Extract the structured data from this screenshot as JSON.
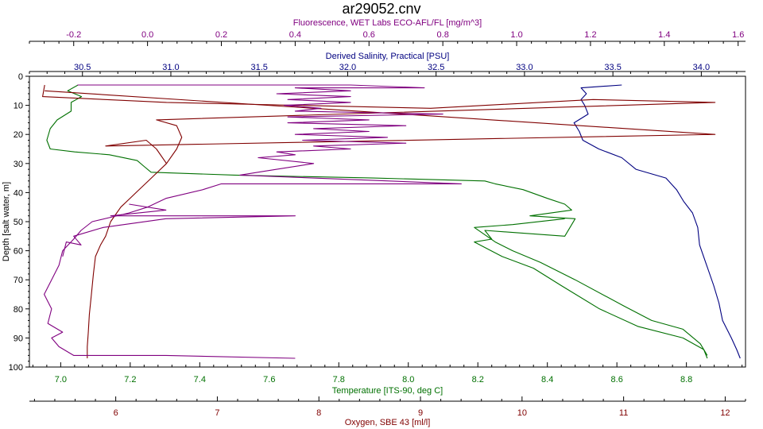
{
  "chart_data": {
    "type": "line",
    "title": "ar29052.cnv",
    "grid": false,
    "legend": "none",
    "depth_axis": {
      "label": "Depth [salt water, m]",
      "range": [
        0,
        100
      ],
      "ticks": [
        0,
        10,
        20,
        30,
        40,
        50,
        60,
        70,
        80,
        90,
        100
      ],
      "inverted": true,
      "color": "#000000"
    },
    "x_axes": [
      {
        "id": "fluor",
        "position": "top-outer",
        "label": "Fluorescence, WET Labs ECO-AFL/FL [mg/m^3]",
        "color": "#800080",
        "range": [
          -0.32,
          1.62
        ],
        "ticks": [
          "-0.2",
          "0.0",
          "0.2",
          "0.4",
          "0.6",
          "0.8",
          "1.0",
          "1.2",
          "1.4",
          "1.6"
        ]
      },
      {
        "id": "sal",
        "position": "top-inner",
        "label": "Derived Salinity, Practical [PSU]",
        "color": "#000080",
        "range": [
          30.2,
          34.25
        ],
        "ticks": [
          "30.5",
          "31.0",
          "31.5",
          "32.0",
          "32.5",
          "33.0",
          "33.5",
          "34.0"
        ]
      },
      {
        "id": "temp",
        "position": "bottom-inner",
        "label": "Temperature [ITS-90, deg C]",
        "color": "#007000",
        "range": [
          6.91,
          8.97
        ],
        "ticks": [
          "7.0",
          "7.2",
          "7.4",
          "7.6",
          "7.8",
          "8.0",
          "8.2",
          "8.4",
          "8.6",
          "8.8"
        ]
      },
      {
        "id": "oxy",
        "position": "bottom-outer",
        "label": "Oxygen, SBE 43 [ml/l]",
        "color": "#800000",
        "range": [
          5.15,
          12.2
        ],
        "ticks": [
          "6",
          "7",
          "8",
          "9",
          "10",
          "11",
          "12"
        ]
      }
    ],
    "series": [
      {
        "axis": "sal",
        "color": "#000080",
        "points": [
          [
            33.55,
            3
          ],
          [
            33.32,
            4
          ],
          [
            33.35,
            6
          ],
          [
            33.32,
            8
          ],
          [
            33.34,
            10
          ],
          [
            33.36,
            13
          ],
          [
            33.28,
            16
          ],
          [
            33.31,
            19
          ],
          [
            33.33,
            22
          ],
          [
            33.42,
            25
          ],
          [
            33.55,
            28
          ],
          [
            33.63,
            32
          ],
          [
            33.8,
            35
          ],
          [
            33.86,
            39
          ],
          [
            33.9,
            43
          ],
          [
            33.95,
            47
          ],
          [
            33.98,
            52
          ],
          [
            33.99,
            58
          ],
          [
            34.03,
            65
          ],
          [
            34.07,
            72
          ],
          [
            34.1,
            78
          ],
          [
            34.12,
            84
          ],
          [
            34.17,
            90
          ],
          [
            34.2,
            94
          ],
          [
            34.22,
            97
          ]
        ]
      },
      {
        "axis": "temp",
        "color": "#007000",
        "points": [
          [
            7.05,
            3
          ],
          [
            7.02,
            5
          ],
          [
            7.06,
            7
          ],
          [
            7.03,
            9
          ],
          [
            7.03,
            12
          ],
          [
            6.99,
            15
          ],
          [
            6.97,
            18
          ],
          [
            6.96,
            22
          ],
          [
            6.97,
            25
          ],
          [
            7.04,
            26
          ],
          [
            7.14,
            27
          ],
          [
            7.22,
            29
          ],
          [
            7.24,
            31
          ],
          [
            7.26,
            33
          ],
          [
            7.5,
            34
          ],
          [
            7.9,
            35
          ],
          [
            8.22,
            36
          ],
          [
            8.25,
            37
          ],
          [
            8.33,
            39
          ],
          [
            8.4,
            42
          ],
          [
            8.45,
            44
          ],
          [
            8.47,
            46
          ],
          [
            8.35,
            48
          ],
          [
            8.48,
            49
          ],
          [
            8.45,
            55
          ],
          [
            8.22,
            53
          ],
          [
            8.24,
            56
          ],
          [
            8.19,
            57
          ],
          [
            8.27,
            62
          ],
          [
            8.36,
            66
          ],
          [
            8.44,
            72
          ],
          [
            8.55,
            80
          ],
          [
            8.66,
            86
          ],
          [
            8.79,
            90
          ],
          [
            8.85,
            94
          ],
          [
            8.86,
            97
          ]
        ]
      },
      {
        "axis": "temp",
        "color": "#007000",
        "points": [
          [
            8.45,
            49
          ],
          [
            8.3,
            51
          ],
          [
            8.19,
            52
          ],
          [
            8.25,
            57
          ],
          [
            8.3,
            60
          ],
          [
            8.38,
            64
          ],
          [
            8.48,
            70
          ],
          [
            8.62,
            79
          ],
          [
            8.7,
            84
          ],
          [
            8.79,
            87
          ],
          [
            8.84,
            92
          ],
          [
            8.86,
            96
          ]
        ]
      },
      {
        "axis": "oxy",
        "color": "#800000",
        "points": [
          [
            5.3,
            3
          ],
          [
            5.28,
            7
          ],
          [
            6.5,
            9
          ],
          [
            9.1,
            11
          ],
          [
            10.7,
            8
          ],
          [
            11.9,
            9
          ],
          [
            6.4,
            15
          ],
          [
            6.6,
            17
          ],
          [
            6.65,
            21
          ],
          [
            6.6,
            25
          ],
          [
            6.5,
            30
          ],
          [
            6.35,
            35
          ],
          [
            6.2,
            40
          ],
          [
            6.05,
            45
          ],
          [
            5.95,
            50
          ],
          [
            5.9,
            55
          ],
          [
            5.85,
            58
          ],
          [
            5.8,
            62
          ],
          [
            5.78,
            68
          ],
          [
            5.76,
            75
          ],
          [
            5.74,
            82
          ],
          [
            5.73,
            88
          ],
          [
            5.72,
            93
          ],
          [
            5.72,
            97
          ]
        ]
      },
      {
        "axis": "oxy",
        "color": "#800000",
        "points": [
          [
            5.3,
            5
          ],
          [
            11.9,
            20
          ],
          [
            5.9,
            24
          ],
          [
            6.3,
            22
          ],
          [
            6.4,
            25
          ],
          [
            6.5,
            30
          ]
        ]
      },
      {
        "axis": "fluor",
        "color": "#800080",
        "points": [
          [
            -0.19,
            3
          ],
          [
            0.2,
            3
          ],
          [
            0.55,
            3
          ],
          [
            0.75,
            4
          ],
          [
            0.4,
            4
          ],
          [
            0.55,
            5
          ],
          [
            0.35,
            6
          ],
          [
            0.55,
            7
          ],
          [
            0.38,
            8
          ],
          [
            0.55,
            9
          ],
          [
            0.37,
            10
          ],
          [
            0.47,
            11
          ],
          [
            0.4,
            12
          ],
          [
            0.8,
            13
          ],
          [
            0.38,
            14
          ],
          [
            0.6,
            15
          ],
          [
            0.38,
            16
          ],
          [
            0.7,
            17
          ],
          [
            0.45,
            18
          ],
          [
            0.6,
            19
          ],
          [
            0.4,
            20
          ],
          [
            0.65,
            21
          ],
          [
            0.42,
            22
          ],
          [
            0.7,
            23
          ],
          [
            0.45,
            24
          ],
          [
            0.55,
            25
          ],
          [
            0.35,
            26
          ],
          [
            0.4,
            27
          ],
          [
            0.3,
            28
          ],
          [
            0.45,
            30
          ],
          [
            0.35,
            32
          ],
          [
            0.25,
            34
          ],
          [
            0.85,
            37
          ],
          [
            0.2,
            37
          ],
          [
            0.15,
            39
          ],
          [
            0.05,
            42
          ],
          [
            0.0,
            45
          ],
          [
            -0.05,
            47
          ],
          [
            -0.15,
            50
          ],
          [
            -0.18,
            53
          ],
          [
            -0.2,
            56
          ],
          [
            -0.23,
            60
          ],
          [
            -0.24,
            65
          ],
          [
            -0.26,
            70
          ],
          [
            -0.28,
            75
          ],
          [
            -0.26,
            80
          ],
          [
            -0.27,
            85
          ],
          [
            -0.23,
            88
          ],
          [
            -0.26,
            90
          ],
          [
            -0.24,
            93
          ],
          [
            -0.2,
            96
          ],
          [
            0.05,
            96
          ],
          [
            0.4,
            97
          ]
        ]
      },
      {
        "axis": "fluor",
        "color": "#800080",
        "points": [
          [
            -0.05,
            44
          ],
          [
            0.05,
            46
          ],
          [
            -0.1,
            48
          ],
          [
            0.25,
            48
          ],
          [
            0.4,
            48
          ],
          [
            0.05,
            49
          ],
          [
            -0.12,
            52
          ],
          [
            -0.2,
            55
          ],
          [
            -0.18,
            58
          ],
          [
            -0.22,
            57
          ],
          [
            -0.23,
            62
          ]
        ]
      }
    ]
  }
}
